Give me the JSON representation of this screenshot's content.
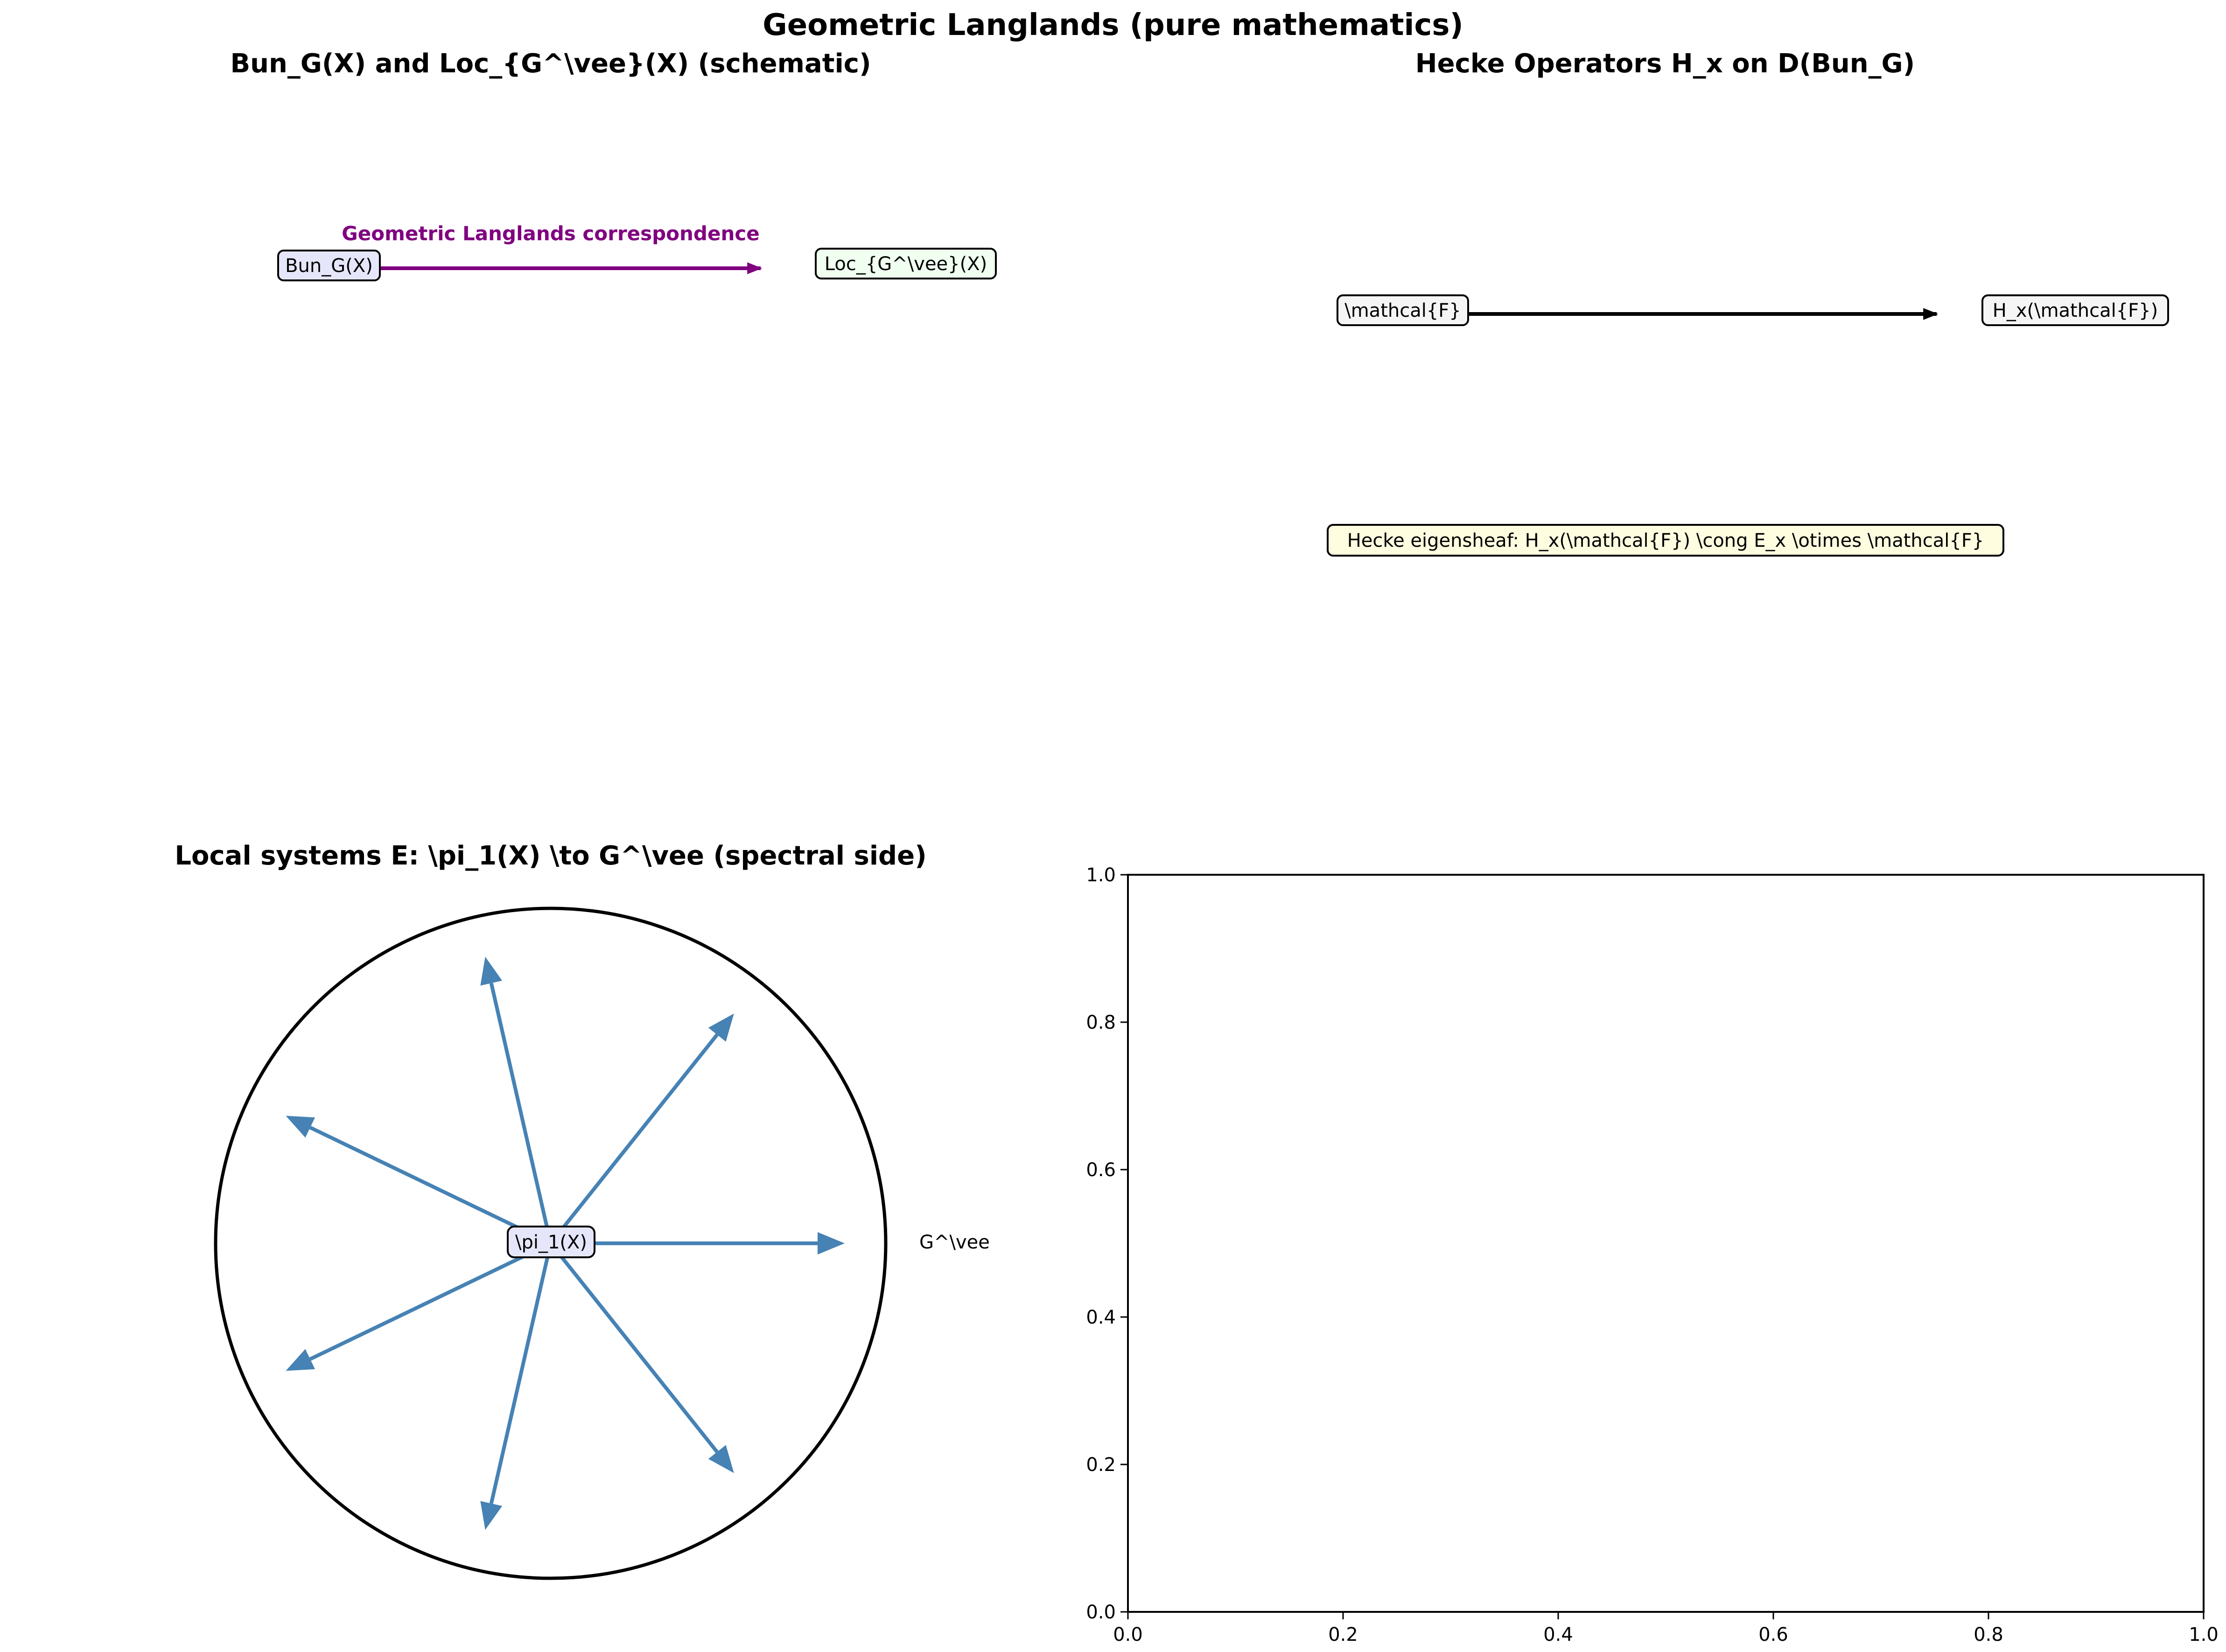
{
  "figure_title": "Geometric Langlands (pure mathematics)",
  "panel_top_left": {
    "title": "Bun_G(X) and Loc_{G^\\vee}(X) (schematic)",
    "left_node": "Bun_G(X)",
    "right_node": "Loc_{G^\\vee}(X)",
    "arrow_label": "Geometric Langlands correspondence",
    "colors": {
      "arrow": "#800080",
      "left_fill": "#e6e6fa",
      "right_fill": "#f0fff0"
    }
  },
  "panel_top_right": {
    "title": "Hecke Operators H_x on D(Bun_G)",
    "source_node": "\\mathcal{F}",
    "target_node": "H_x(\\mathcal{F})",
    "eigensheaf_note": "Hecke eigensheaf: H_x(\\mathcal{F}) \\cong E_x \\otimes \\mathcal{F}",
    "colors": {
      "node_fill": "#f5f5f5",
      "note_fill": "#fffde0"
    }
  },
  "panel_bottom_left": {
    "title": "Local systems E: \\pi_1(X) \\to G^\\vee (spectral side)",
    "center_node": "\\pi_1(X)",
    "outer_label": "G^\\vee",
    "arrow_count": 7,
    "colors": {
      "arrows": "#4682b4",
      "center_fill": "#e6e6fa"
    }
  },
  "chart_data": {
    "type": "line",
    "series": [],
    "xlim": [
      0.0,
      1.0
    ],
    "ylim": [
      0.0,
      1.0
    ],
    "x_ticks": [
      "0.0",
      "0.2",
      "0.4",
      "0.6",
      "0.8",
      "1.0"
    ],
    "y_ticks": [
      "0.0",
      "0.2",
      "0.4",
      "0.6",
      "0.8",
      "1.0"
    ],
    "title": "",
    "xlabel": "",
    "ylabel": "",
    "grid": false
  }
}
